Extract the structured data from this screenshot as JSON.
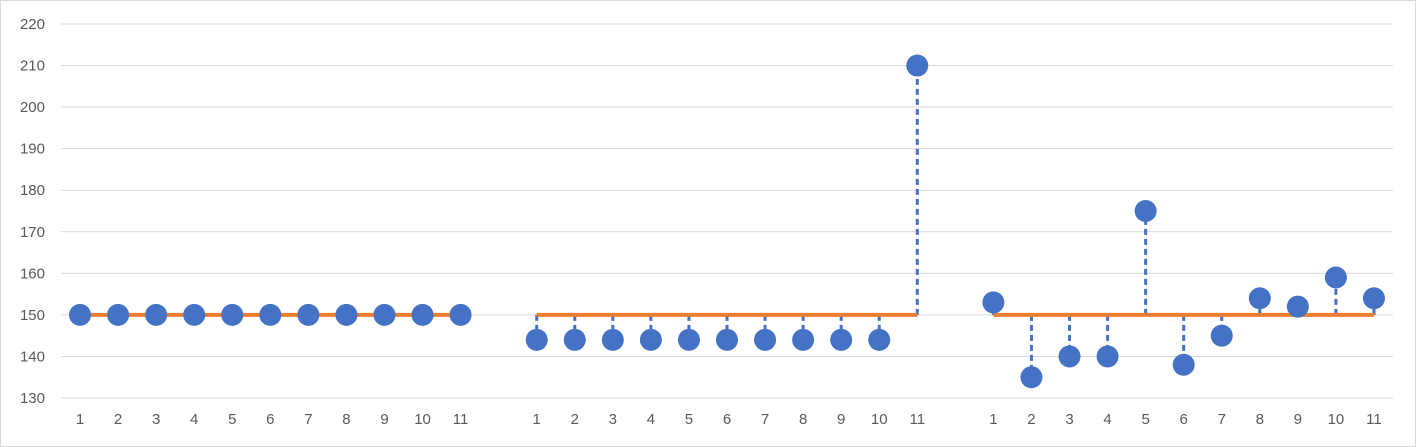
{
  "chart_data": {
    "type": "scatter",
    "title": "",
    "xlabel": "",
    "ylabel": "",
    "ylim": [
      130,
      220
    ],
    "y_ticks": [
      130,
      140,
      150,
      160,
      170,
      180,
      190,
      200,
      210,
      220
    ],
    "grid": true,
    "legend": "none",
    "reference_value": 150,
    "groups": [
      {
        "x": [
          "1",
          "2",
          "3",
          "4",
          "5",
          "6",
          "7",
          "8",
          "9",
          "10",
          "11"
        ],
        "values": [
          150,
          150,
          150,
          150,
          150,
          150,
          150,
          150,
          150,
          150,
          150
        ]
      },
      {
        "x": [
          "1",
          "2",
          "3",
          "4",
          "5",
          "6",
          "7",
          "8",
          "9",
          "10",
          "11"
        ],
        "values": [
          144,
          144,
          144,
          144,
          144,
          144,
          144,
          144,
          144,
          144,
          210
        ]
      },
      {
        "x": [
          "1",
          "2",
          "3",
          "4",
          "5",
          "6",
          "7",
          "8",
          "9",
          "10",
          "11"
        ],
        "values": [
          153,
          135,
          140,
          140,
          175,
          138,
          145,
          154,
          152,
          159,
          154
        ]
      }
    ],
    "colors": {
      "points": "#4472C4",
      "reference_line": "#ED7D31",
      "grid": "#d9d9d9",
      "text": "#595959"
    }
  }
}
